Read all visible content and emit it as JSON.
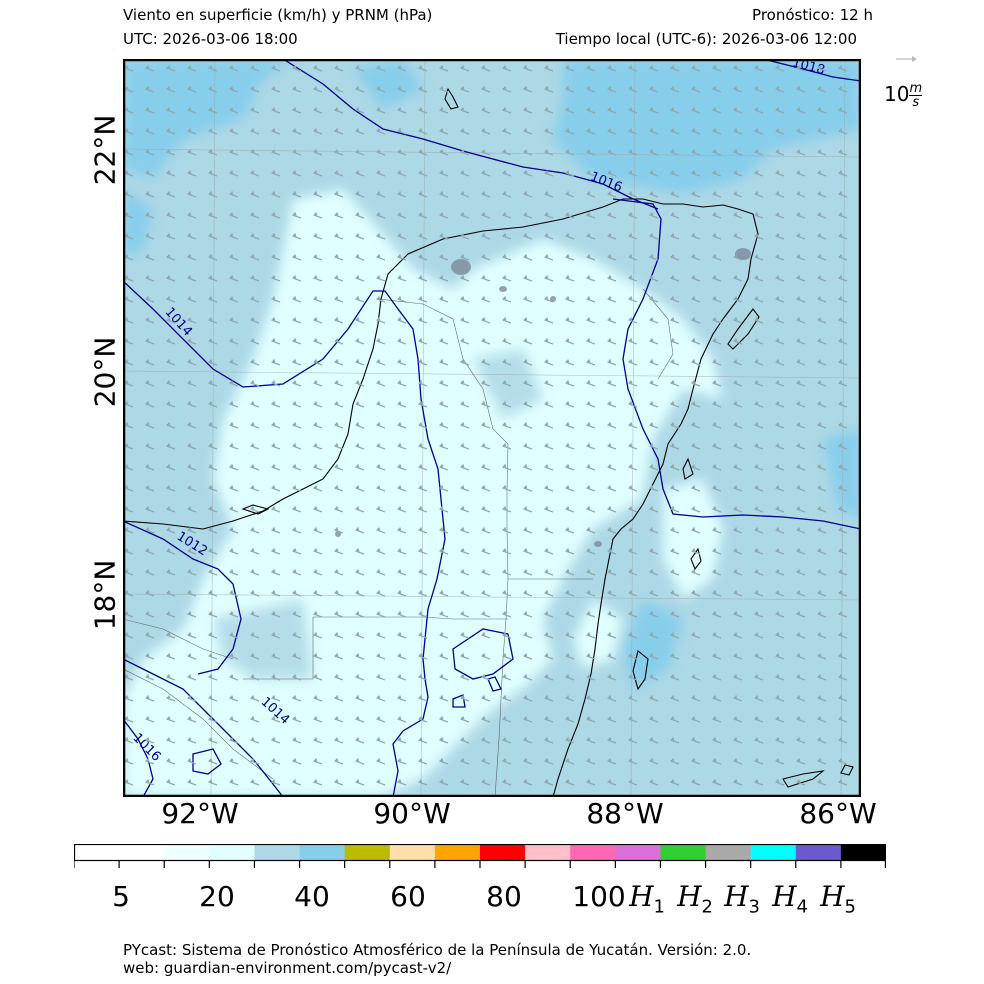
{
  "header": {
    "title": "Viento en superficie (km/h) y PRNM (hPa)",
    "forecast": "Pronóstico: 12 h",
    "utc": "UTC:  2026-03-06 18:00",
    "local": "Tiempo local (UTC-6): 2026-03-06 12:00"
  },
  "map": {
    "lon_labels": [
      "92°W",
      "90°W",
      "88°W",
      "86°W"
    ],
    "lat_labels": [
      "22°N",
      "20°N",
      "18°N"
    ],
    "isobars": [
      "1018",
      "1016",
      "1014",
      "1012",
      "1014",
      "1016"
    ],
    "colors": {
      "ocean": "#add8e6",
      "land_light": "#e0ffff",
      "sky": "#87ceeb",
      "isobar": "#00008b",
      "barb": "#8fa9b0"
    }
  },
  "reference_vector": {
    "value": "10",
    "unit_num": "m",
    "unit_den": "s"
  },
  "colorbar": {
    "segments": [
      "#ffffff",
      "#ffffff",
      "#f0ffff",
      "#e0ffff",
      "#add8e6",
      "#87ceeb",
      "#bbbb00",
      "#ffdead",
      "#ffa500",
      "#ff0000",
      "#ffc0cb",
      "#ff69b4",
      "#da70d6",
      "#32cd32",
      "#a9a9a9",
      "#00ffff",
      "#6a5acd",
      "#000000"
    ],
    "labels": [
      "5",
      "20",
      "40",
      "60",
      "80",
      "100"
    ],
    "hurricane_labels": [
      {
        "letter": "H",
        "sub": "1"
      },
      {
        "letter": "H",
        "sub": "2"
      },
      {
        "letter": "H",
        "sub": "3"
      },
      {
        "letter": "H",
        "sub": "4"
      },
      {
        "letter": "H",
        "sub": "5"
      }
    ]
  },
  "footer": {
    "line1": "PYcast: Sistema de Pronóstico Atmosférico de la Península de Yucatán. Versión: 2.0.",
    "line2": "web: guardian-environment.com/pycast-v2/"
  }
}
